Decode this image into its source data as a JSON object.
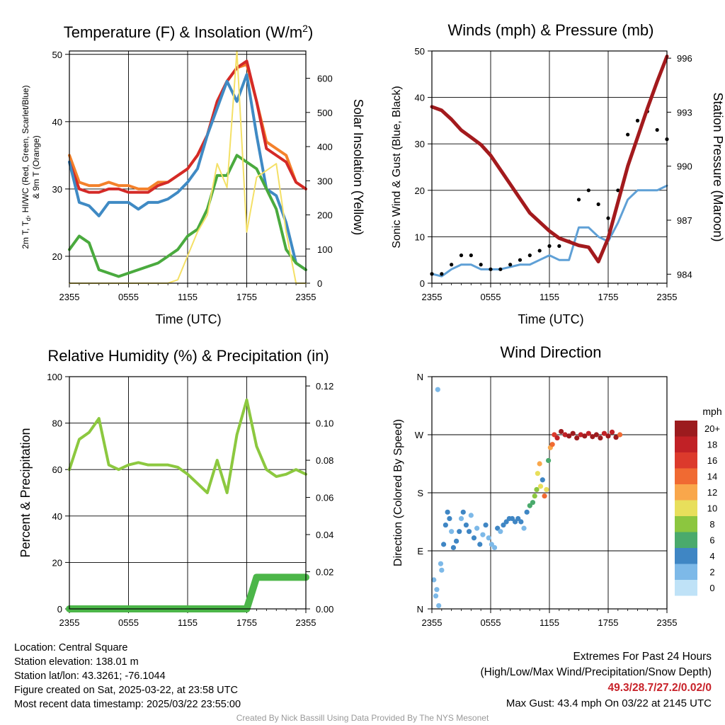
{
  "chart_data": [
    {
      "type": "line",
      "title": "Temperature (F) & Insolation (W/m²)",
      "title_main": "Temperature (F) & Insolation (W/m",
      "title_sup": "2",
      "title_end": ")",
      "xlabel": "Time (UTC)",
      "ylabel": "2m T, Td, HI/WC (Red, Green, Scarlet/Blue)",
      "ylabel_part1": "2m T, T",
      "ylabel_sub": "d",
      "ylabel_part2": ", HI/WC (Red, Green, Scarlet/Blue)",
      "ylabel2": "& 9m T (Orange)",
      "y2label": "Solar Insolation (Yellow)",
      "xticks": [
        "2355",
        "0555",
        "1155",
        "1755",
        "2355"
      ],
      "ylim": [
        16,
        50.5
      ],
      "yticks": [
        20,
        30,
        40,
        50
      ],
      "y2lim": [
        0,
        680
      ],
      "y2ticks": [
        0,
        100,
        200,
        300,
        400,
        500,
        600
      ],
      "x_hours": [
        0,
        1,
        2,
        3,
        4,
        5,
        6,
        7,
        8,
        9,
        10,
        11,
        12,
        13,
        14,
        15,
        16,
        17,
        18,
        19,
        20,
        21,
        22,
        23,
        24
      ],
      "series": [
        {
          "key": "t9m",
          "color": "#f4812b",
          "values": [
            35,
            31,
            30.5,
            30.5,
            31,
            30.5,
            30.5,
            30,
            30,
            31,
            31,
            32,
            33,
            35,
            38,
            43,
            46,
            48,
            48.5,
            43,
            37,
            36,
            35,
            31,
            30
          ]
        },
        {
          "key": "t2m",
          "color": "#d42a27",
          "values": [
            34,
            30,
            29.5,
            29.5,
            30,
            30,
            29.5,
            29.5,
            29.5,
            30.5,
            31,
            32,
            33,
            35,
            38,
            43,
            46,
            48,
            49,
            43,
            36,
            35,
            34,
            31,
            30
          ]
        },
        {
          "key": "wc",
          "color": "#3f8ac4",
          "values": [
            34,
            28,
            27.5,
            26,
            28,
            28,
            28,
            27,
            28,
            28,
            28.5,
            29.5,
            31,
            33,
            38,
            42,
            46,
            43,
            47,
            38,
            30,
            29,
            25,
            19,
            18
          ]
        },
        {
          "key": "td",
          "color": "#4aaa3e",
          "values": [
            21,
            23,
            22,
            18,
            17.5,
            17,
            17.5,
            18,
            18.5,
            19,
            20,
            21,
            23,
            24,
            27,
            32,
            32,
            35,
            34,
            33,
            30,
            27,
            21,
            19,
            18
          ]
        },
        {
          "key": "sol",
          "color": "#f4e066",
          "y2": true,
          "values": [
            0,
            0,
            0,
            0,
            0,
            0,
            0,
            0,
            0,
            0,
            0,
            10,
            80,
            150,
            200,
            350,
            280,
            680,
            150,
            310,
            330,
            350,
            150,
            0,
            0
          ]
        }
      ]
    },
    {
      "type": "line",
      "title": "Winds (mph) & Pressure (mb)",
      "xlabel": "Time (UTC)",
      "ylabel": "Sonic Wind & Gust (Blue, Black)",
      "y2label": "Station Pressure (Maroon)",
      "xticks": [
        "2355",
        "0555",
        "1155",
        "1755",
        "2355"
      ],
      "ylim": [
        0,
        50
      ],
      "yticks": [
        0,
        10,
        20,
        30,
        40,
        50
      ],
      "y2lim": [
        983.5,
        996.4
      ],
      "y2ticks": [
        984,
        987,
        990,
        993,
        996
      ],
      "x_hours": [
        0,
        1,
        2,
        3,
        4,
        5,
        6,
        7,
        8,
        9,
        10,
        11,
        12,
        13,
        14,
        15,
        16,
        17,
        18,
        19,
        20,
        21,
        22,
        23,
        24
      ],
      "series": [
        {
          "key": "wind",
          "color": "#5fa0d6",
          "values": [
            2,
            1.5,
            3,
            4,
            4,
            3,
            3,
            3,
            3.5,
            4,
            4,
            5,
            6,
            5,
            5,
            12,
            12,
            10,
            9,
            13,
            18,
            20,
            20,
            20,
            21
          ]
        },
        {
          "key": "gust",
          "color": "#000000",
          "values": [
            2,
            2,
            4,
            6,
            6,
            4,
            3,
            3,
            4,
            5,
            6,
            7,
            8,
            8,
            9,
            18,
            20,
            17,
            14,
            20,
            32,
            35,
            37,
            33,
            31
          ]
        },
        {
          "key": "pressure",
          "color": "#a31a1d",
          "y2": true,
          "values": [
            993.3,
            993.1,
            992.6,
            992.0,
            991.6,
            991.2,
            990.6,
            989.8,
            989.0,
            988.2,
            987.4,
            986.9,
            986.4,
            986.0,
            985.8,
            985.6,
            985.5,
            984.7,
            986.0,
            988.0,
            990.0,
            991.6,
            993.2,
            994.7,
            996.1
          ]
        }
      ]
    },
    {
      "type": "line",
      "title": "Relative Humidity (%) & Precipitation (in)",
      "xlabel": "",
      "ylabel": "Percent & Precipitation",
      "xticks": [
        "2355",
        "0555",
        "1155",
        "1755",
        "2355"
      ],
      "ylim": [
        0,
        100
      ],
      "yticks": [
        0,
        20,
        40,
        60,
        80,
        100
      ],
      "y2lim": [
        0,
        0.125
      ],
      "y2ticks": [
        "0.00",
        "0.02",
        "0.04",
        "0.06",
        "0.08",
        "0.10",
        "0.12"
      ],
      "x_hours": [
        0,
        1,
        2,
        3,
        4,
        5,
        6,
        7,
        8,
        9,
        10,
        11,
        12,
        13,
        14,
        15,
        16,
        17,
        18,
        19,
        20,
        21,
        22,
        23,
        24
      ],
      "series": [
        {
          "key": "rh",
          "color": "#8cc83f",
          "values": [
            60,
            73,
            76,
            82,
            62,
            60,
            62,
            63,
            62,
            62,
            62,
            61,
            58,
            54,
            50,
            64,
            50,
            75,
            90,
            70,
            60,
            57,
            58,
            60,
            58
          ]
        },
        {
          "key": "precip",
          "color": "#4cb649",
          "y2": true,
          "values": [
            0,
            0,
            0,
            0,
            0,
            0,
            0,
            0,
            0,
            0,
            0,
            0,
            0,
            0,
            0,
            0,
            0,
            0,
            0,
            0.017,
            0.017,
            0.017,
            0.017,
            0.017,
            0.017
          ]
        }
      ]
    },
    {
      "type": "scatter",
      "title": "Wind Direction",
      "ylabel": "Direction (Colored By Speed)",
      "xticks": [
        "2355",
        "0555",
        "1155",
        "1755",
        "2355"
      ],
      "yticks": [
        "N",
        "E",
        "S",
        "W",
        "N"
      ],
      "ylim": [
        0,
        360
      ],
      "legend_title": "mph",
      "legend_labels": [
        "20+",
        "18",
        "16",
        "14",
        "12",
        "10",
        "8",
        "6",
        "4",
        "2",
        "0"
      ],
      "legend_colors": [
        "#9c1b1e",
        "#c12126",
        "#dc3a2c",
        "#f06a32",
        "#f9a74b",
        "#e8df5b",
        "#8cc63f",
        "#4aaa6c",
        "#3f86c4",
        "#7db9e8",
        "#bfe2f7"
      ],
      "points": [
        {
          "x": 0.2,
          "y": 45,
          "s": 1
        },
        {
          "x": 0.4,
          "y": 20,
          "s": 1
        },
        {
          "x": 0.5,
          "y": 30,
          "s": 2
        },
        {
          "x": 0.6,
          "y": 340,
          "s": 1
        },
        {
          "x": 0.7,
          "y": 5,
          "s": 1
        },
        {
          "x": 0.9,
          "y": 70,
          "s": 1
        },
        {
          "x": 1.0,
          "y": 60,
          "s": 2
        },
        {
          "x": 1.2,
          "y": 100,
          "s": 3
        },
        {
          "x": 1.4,
          "y": 130,
          "s": 3
        },
        {
          "x": 1.6,
          "y": 150,
          "s": 4
        },
        {
          "x": 1.8,
          "y": 140,
          "s": 3
        },
        {
          "x": 2.0,
          "y": 120,
          "s": 2
        },
        {
          "x": 2.2,
          "y": 95,
          "s": 3
        },
        {
          "x": 2.5,
          "y": 105,
          "s": 4
        },
        {
          "x": 2.8,
          "y": 120,
          "s": 3
        },
        {
          "x": 3.0,
          "y": 140,
          "s": 2
        },
        {
          "x": 3.2,
          "y": 150,
          "s": 3
        },
        {
          "x": 3.5,
          "y": 130,
          "s": 4
        },
        {
          "x": 3.8,
          "y": 120,
          "s": 3
        },
        {
          "x": 4.0,
          "y": 145,
          "s": 2
        },
        {
          "x": 4.3,
          "y": 110,
          "s": 3
        },
        {
          "x": 4.6,
          "y": 125,
          "s": 2
        },
        {
          "x": 4.9,
          "y": 100,
          "s": 3
        },
        {
          "x": 5.2,
          "y": 115,
          "s": 2
        },
        {
          "x": 5.5,
          "y": 130,
          "s": 3
        },
        {
          "x": 5.8,
          "y": 110,
          "s": 2
        },
        {
          "x": 6.1,
          "y": 100,
          "s": 1
        },
        {
          "x": 6.4,
          "y": 95,
          "s": 2
        },
        {
          "x": 6.7,
          "y": 125,
          "s": 3
        },
        {
          "x": 7.0,
          "y": 120,
          "s": 2
        },
        {
          "x": 7.3,
          "y": 130,
          "s": 3
        },
        {
          "x": 7.6,
          "y": 135,
          "s": 4
        },
        {
          "x": 7.9,
          "y": 140,
          "s": 3
        },
        {
          "x": 8.2,
          "y": 140,
          "s": 4
        },
        {
          "x": 8.5,
          "y": 135,
          "s": 3
        },
        {
          "x": 8.8,
          "y": 140,
          "s": 4
        },
        {
          "x": 9.1,
          "y": 135,
          "s": 3
        },
        {
          "x": 9.4,
          "y": 125,
          "s": 2
        },
        {
          "x": 9.7,
          "y": 150,
          "s": 4
        },
        {
          "x": 10.0,
          "y": 160,
          "s": 5
        },
        {
          "x": 10.3,
          "y": 165,
          "s": 6
        },
        {
          "x": 10.5,
          "y": 175,
          "s": 7
        },
        {
          "x": 10.7,
          "y": 185,
          "s": 8
        },
        {
          "x": 10.8,
          "y": 210,
          "s": 9
        },
        {
          "x": 11.0,
          "y": 225,
          "s": 12
        },
        {
          "x": 11.1,
          "y": 190,
          "s": 10
        },
        {
          "x": 11.3,
          "y": 200,
          "s": 4
        },
        {
          "x": 11.5,
          "y": 175,
          "s": 13
        },
        {
          "x": 11.7,
          "y": 185,
          "s": 9
        },
        {
          "x": 11.9,
          "y": 230,
          "s": 5
        },
        {
          "x": 12.1,
          "y": 250,
          "s": 12
        },
        {
          "x": 12.3,
          "y": 255,
          "s": 14
        },
        {
          "x": 12.5,
          "y": 270,
          "s": 16
        },
        {
          "x": 12.8,
          "y": 265,
          "s": 18
        },
        {
          "x": 13.2,
          "y": 275,
          "s": 20
        },
        {
          "x": 13.6,
          "y": 270,
          "s": 18
        },
        {
          "x": 14.0,
          "y": 268,
          "s": 20
        },
        {
          "x": 14.4,
          "y": 272,
          "s": 19
        },
        {
          "x": 14.8,
          "y": 265,
          "s": 20
        },
        {
          "x": 15.2,
          "y": 270,
          "s": 17
        },
        {
          "x": 15.6,
          "y": 268,
          "s": 20
        },
        {
          "x": 16.0,
          "y": 272,
          "s": 18
        },
        {
          "x": 16.4,
          "y": 267,
          "s": 20
        },
        {
          "x": 16.8,
          "y": 270,
          "s": 19
        },
        {
          "x": 17.2,
          "y": 265,
          "s": 20
        },
        {
          "x": 17.6,
          "y": 272,
          "s": 18
        },
        {
          "x": 18.0,
          "y": 268,
          "s": 20
        },
        {
          "x": 18.4,
          "y": 274,
          "s": 17
        },
        {
          "x": 18.8,
          "y": 266,
          "s": 20
        },
        {
          "x": 19.2,
          "y": 270,
          "s": 14
        }
      ]
    }
  ],
  "info": {
    "location": "Location: Central Square",
    "elevation": "Station elevation: 138.01 m",
    "latlon": "Station lat/lon: 43.3261; -76.1044",
    "created": "Figure created on Sat, 2025-03-22, at 23:58 UTC",
    "recent": "Most recent data timestamp: 2025/03/22 23:55:00"
  },
  "extremes": {
    "title": "Extremes For Past 24 Hours",
    "subtitle": "(High/Low/Max Wind/Precipitation/Snow Depth)",
    "values": "49.3/28.7/27.2/0.02/0",
    "values_color": "#c8222a",
    "gust": "Max Gust: 43.4 mph On 03/22 at 2145 UTC"
  },
  "credit": "Created By Nick Bassill Using Data Provided By The NYS Mesonet"
}
